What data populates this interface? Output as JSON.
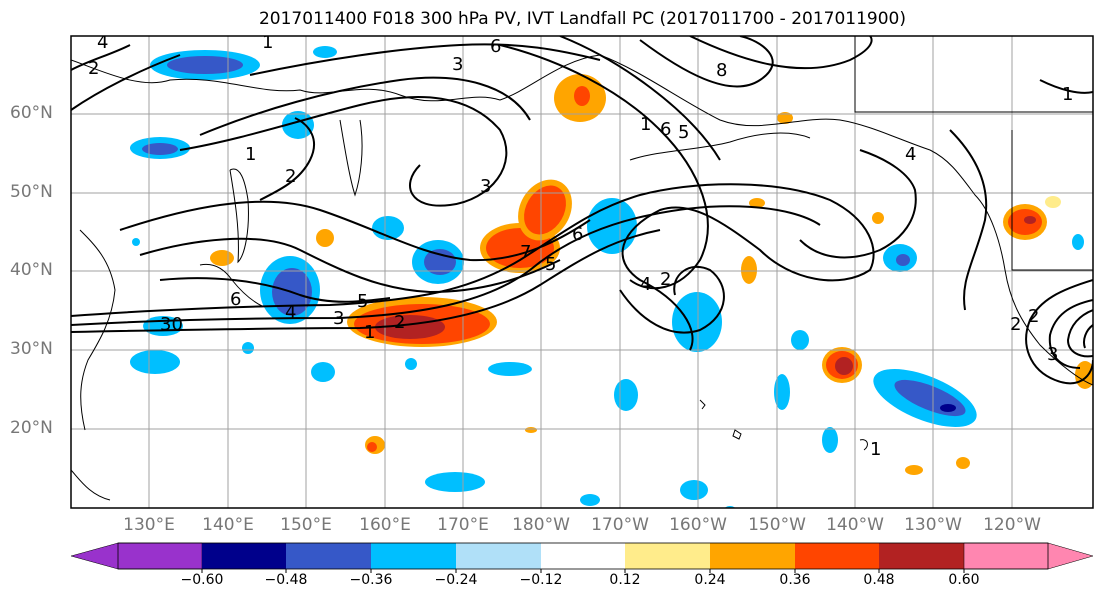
{
  "title": "2017011400 F018 300 hPa PV, IVT Landfall PC (2017011700 - 2017011900)",
  "lat_labels": [
    "60°N",
    "50°N",
    "40°N",
    "30°N",
    "20°N"
  ],
  "lon_labels": [
    "130°E",
    "140°E",
    "150°E",
    "160°E",
    "170°E",
    "180°W",
    "170°W",
    "160°W",
    "150°W",
    "140°W",
    "130°W",
    "120°W"
  ],
  "colorbar": {
    "tick_labels": [
      "−0.60",
      "−0.48",
      "−0.36",
      "−0.24",
      "−0.12",
      "0.12",
      "0.24",
      "0.36",
      "0.48",
      "0.60"
    ],
    "colors": [
      "#9932cc",
      "#00008b",
      "#3658c8",
      "#00bfff",
      "#b0e0f8",
      "#ffffff",
      "#ffec8b",
      "#ffa500",
      "#ff4500",
      "#b22222",
      "#ff86b0"
    ]
  },
  "contour_labels": [
    "4",
    "2",
    "1",
    "6",
    "3",
    "8",
    "1",
    "6",
    "5",
    "1",
    "2",
    "3",
    "7",
    "5",
    "6",
    "4",
    "2",
    "6",
    "5",
    "4",
    "3",
    "2",
    "1",
    "30",
    "2",
    "2",
    "3",
    "1",
    "4",
    "1"
  ]
}
